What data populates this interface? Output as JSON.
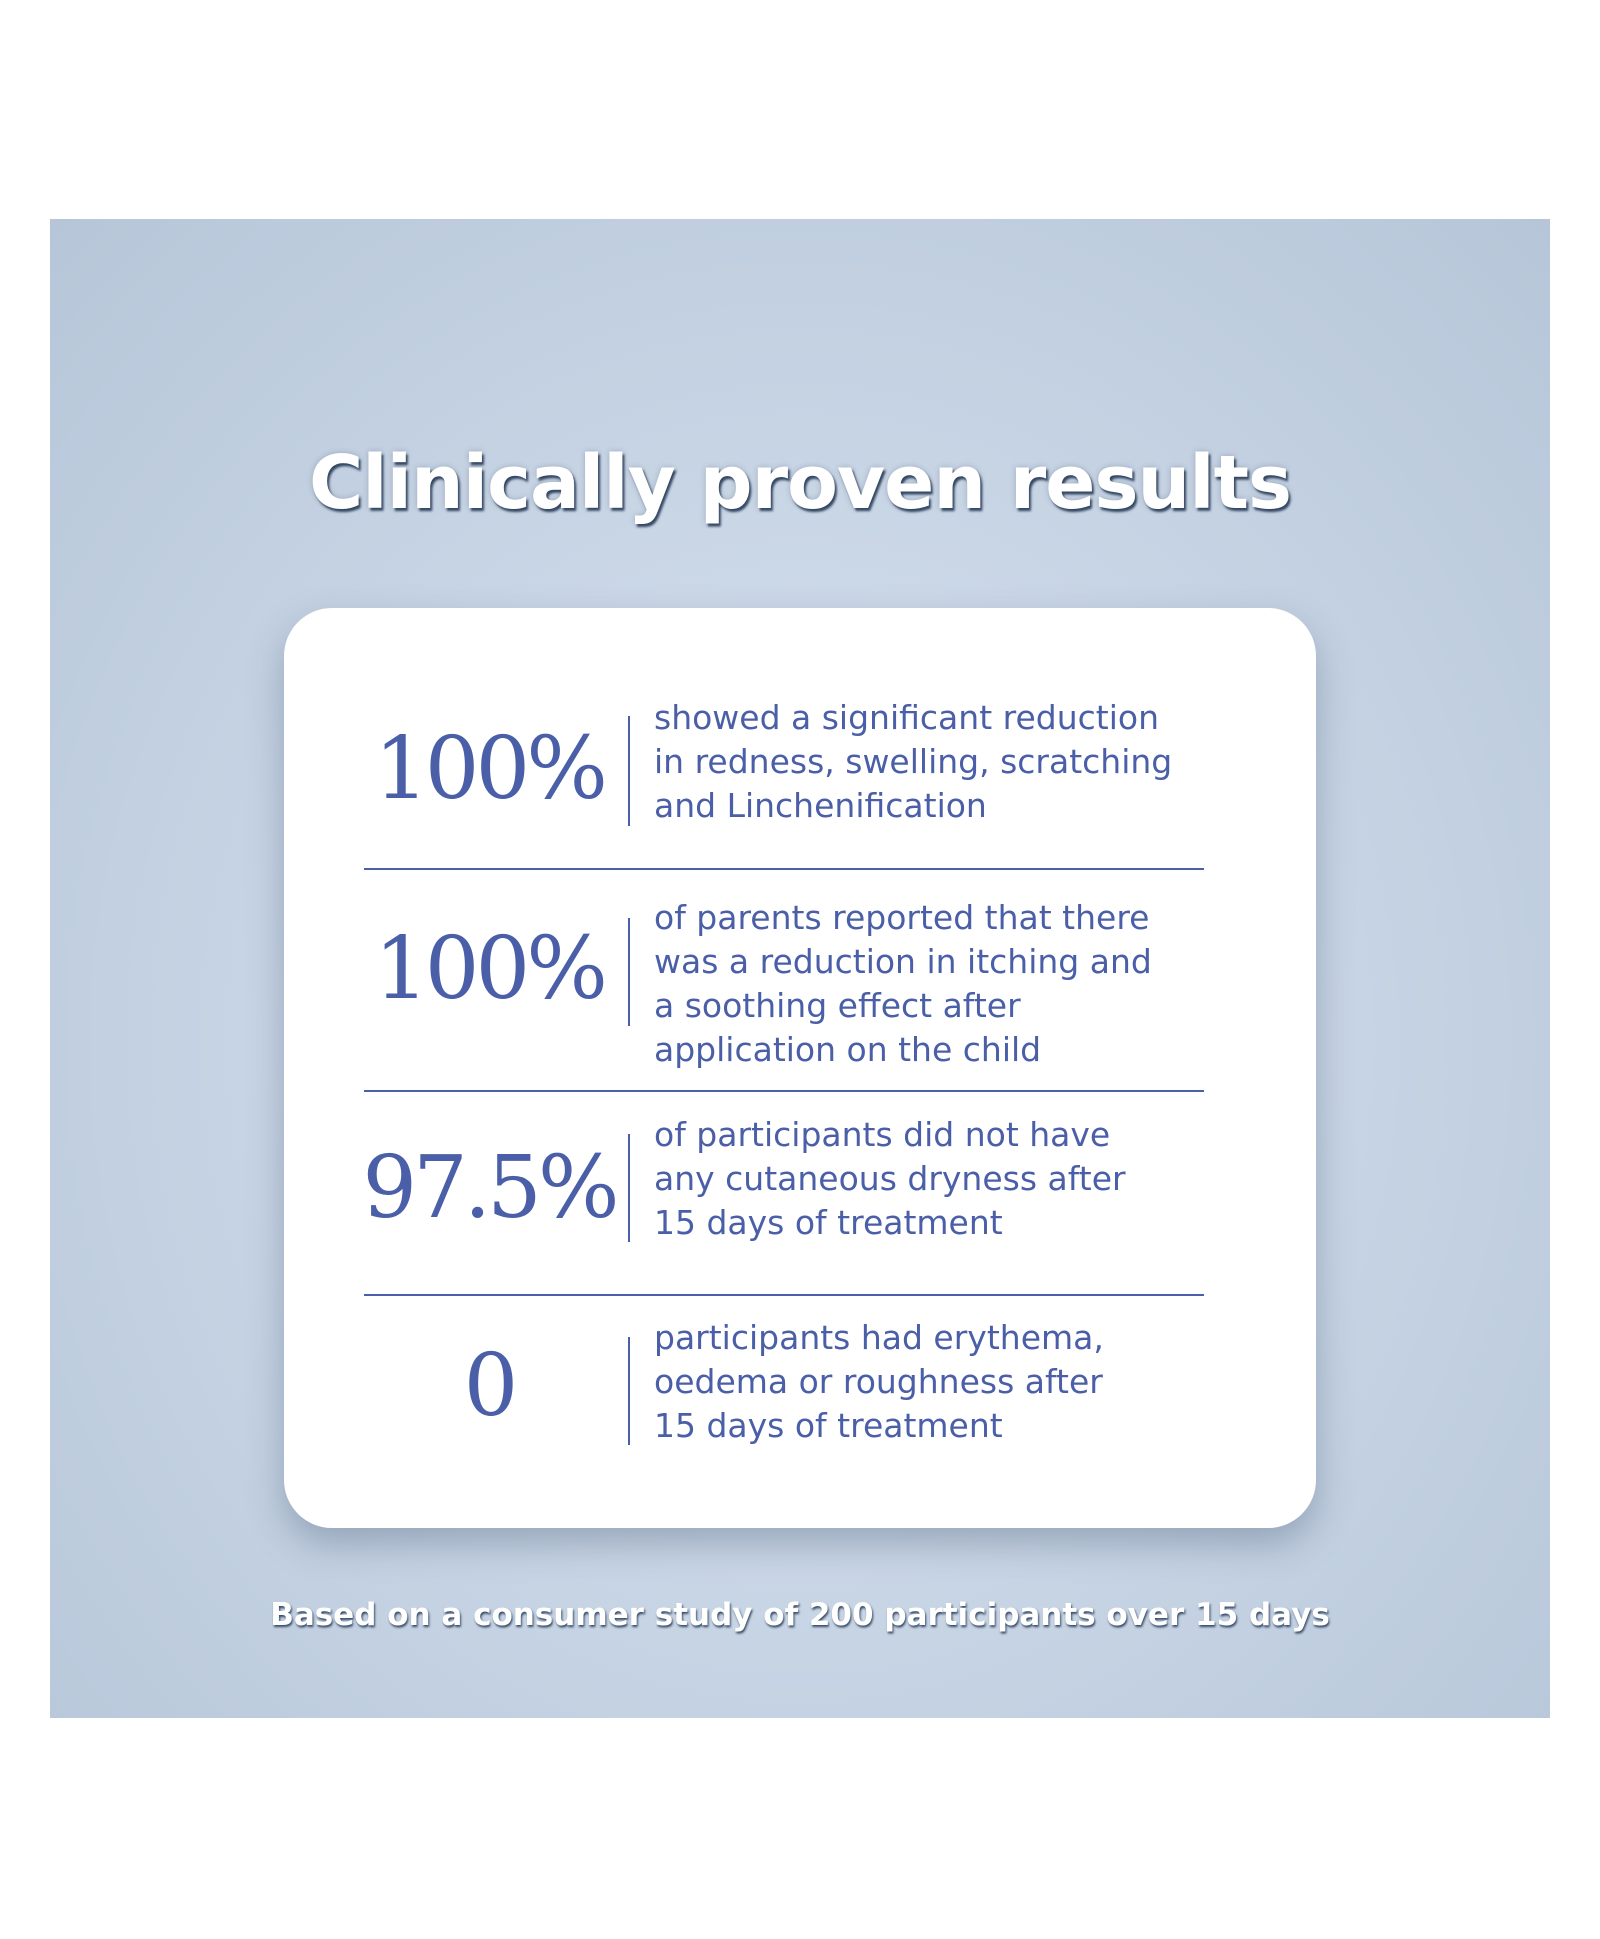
{
  "headline": "Clinically proven results",
  "stats": [
    {
      "value": "100%",
      "lines": [
        "showed a significant reduction",
        "in redness, swelling, scratching",
        "and Linchenification"
      ]
    },
    {
      "value": "100%",
      "lines": [
        "of parents reported that there",
        "was a reduction in itching and",
        "a soothing effect after",
        "application on the child"
      ]
    },
    {
      "value": "97.5%",
      "lines": [
        "of participants did not have",
        "any cutaneous dryness after",
        "15 days of treatment"
      ]
    },
    {
      "value": "0",
      "lines": [
        "participants had erythema,",
        "oedema or roughness after",
        "15 days of treatment"
      ]
    }
  ],
  "footnote": "Based on a consumer study of 200 participants over 15 days",
  "colors": {
    "accent": "#4a5fa8",
    "background": "#c9d6e6",
    "card": "#ffffff"
  }
}
